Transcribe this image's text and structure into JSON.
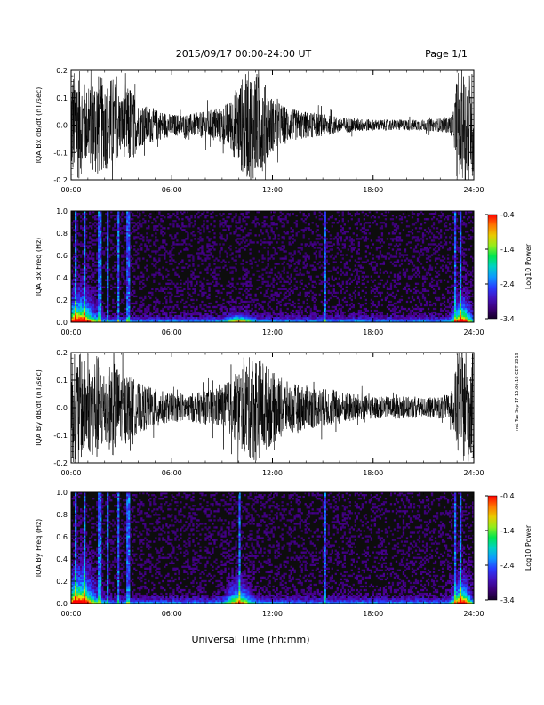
{
  "header": {
    "date_range": "2015/09/17   00:00-24:00 UT",
    "page": "Page 1/1"
  },
  "side_note": "net Tue Sep 17 15:06:18 CDT 2019",
  "xlabel": "Universal Time (hh:mm)",
  "colors": {
    "trace": "#000000",
    "spec_bg": "#0d0d0d"
  },
  "chart_data": [
    {
      "type": "line",
      "ylabel": "IQA Bx dB/dt (nT/sec)",
      "ylim": [
        -0.2,
        0.2
      ],
      "yticks": [
        "0.2",
        "0.1",
        "0.0",
        "-0.1",
        "-0.2"
      ],
      "xlim": [
        0,
        24
      ],
      "xticks": [
        "00:00",
        "06:00",
        "12:00",
        "18:00",
        "24:00"
      ],
      "envelope": {
        "hours": [
          0,
          0.5,
          1,
          1.5,
          2,
          2.5,
          3,
          3.5,
          4,
          4.5,
          5,
          5.5,
          6,
          7,
          8,
          8.5,
          9,
          9.5,
          10,
          10.5,
          11,
          11.5,
          12,
          13,
          14,
          15,
          16,
          17,
          18,
          19,
          20,
          21,
          22,
          22.5,
          22.8,
          23,
          23.3,
          23.6,
          24
        ],
        "amplitude": [
          0.2,
          0.2,
          0.13,
          0.2,
          0.16,
          0.18,
          0.1,
          0.15,
          0.08,
          0.07,
          0.06,
          0.05,
          0.04,
          0.04,
          0.05,
          0.06,
          0.07,
          0.09,
          0.16,
          0.2,
          0.2,
          0.16,
          0.1,
          0.06,
          0.05,
          0.04,
          0.03,
          0.025,
          0.02,
          0.02,
          0.02,
          0.02,
          0.025,
          0.03,
          0.05,
          0.2,
          0.2,
          0.2,
          0.2
        ]
      }
    },
    {
      "type": "heatmap",
      "ylabel": "IQA Bx Freq (Hz)",
      "ylim": [
        0,
        1.0
      ],
      "yticks": [
        "1.0",
        "0.8",
        "0.6",
        "0.4",
        "0.2",
        "0.0"
      ],
      "xlim": [
        0,
        24
      ],
      "xticks": [
        "00:00",
        "06:00",
        "12:00",
        "18:00",
        "24:00"
      ],
      "colorbar": {
        "label": "Log10 Power",
        "ticks": [
          "-0.4",
          "-1.4",
          "-2.4",
          "-3.4"
        ],
        "range": [
          -3.4,
          -0.4
        ]
      },
      "spikes_hours": [
        0.3,
        0.8,
        1.7,
        2.2,
        2.8,
        3.4,
        15.1,
        22.9,
        23.2
      ],
      "bursts": [
        {
          "hour": 0.5,
          "width": 0.9,
          "freq": 0.35,
          "level": 0.9
        },
        {
          "hour": 10.0,
          "width": 0.7,
          "freq": 0.12,
          "level": 0.55
        },
        {
          "hour": 23.3,
          "width": 0.5,
          "freq": 0.3,
          "level": 0.85
        }
      ]
    },
    {
      "type": "line",
      "ylabel": "IQA By dB/dt (nT/sec)",
      "ylim": [
        -0.2,
        0.2
      ],
      "yticks": [
        "0.2",
        "0.1",
        "0.0",
        "-0.1",
        "-0.2"
      ],
      "xlim": [
        0,
        24
      ],
      "xticks": [
        "00:00",
        "06:00",
        "12:00",
        "18:00",
        "24:00"
      ],
      "envelope": {
        "hours": [
          0,
          0.5,
          1,
          1.5,
          2,
          2.5,
          3,
          3.5,
          4,
          4.5,
          5,
          5.5,
          6,
          7,
          8,
          8.5,
          9,
          9.5,
          10,
          10.5,
          11,
          11.5,
          12,
          13,
          14,
          15,
          16,
          17,
          18,
          19,
          20,
          21,
          22,
          22.5,
          22.8,
          23,
          23.3,
          23.6,
          24
        ],
        "amplitude": [
          0.2,
          0.2,
          0.16,
          0.2,
          0.14,
          0.18,
          0.12,
          0.12,
          0.09,
          0.08,
          0.07,
          0.06,
          0.05,
          0.05,
          0.06,
          0.07,
          0.08,
          0.1,
          0.14,
          0.18,
          0.2,
          0.17,
          0.13,
          0.09,
          0.08,
          0.07,
          0.06,
          0.05,
          0.04,
          0.04,
          0.04,
          0.035,
          0.04,
          0.05,
          0.07,
          0.2,
          0.2,
          0.2,
          0.2
        ]
      }
    },
    {
      "type": "heatmap",
      "ylabel": "IQA By Freq (Hz)",
      "ylim": [
        0,
        1.0
      ],
      "yticks": [
        "1.0",
        "0.8",
        "0.6",
        "0.4",
        "0.2",
        "0.0"
      ],
      "xlim": [
        0,
        24
      ],
      "xticks": [
        "00:00",
        "06:00",
        "12:00",
        "18:00",
        "24:00"
      ],
      "colorbar": {
        "label": "Log10 Power",
        "ticks": [
          "-0.4",
          "-1.4",
          "-2.4",
          "-3.4"
        ],
        "range": [
          -3.4,
          -0.4
        ]
      },
      "spikes_hours": [
        0.3,
        0.8,
        1.7,
        2.2,
        2.8,
        3.4,
        10.0,
        15.1,
        22.9,
        23.2
      ],
      "bursts": [
        {
          "hour": 0.5,
          "width": 0.9,
          "freq": 0.4,
          "level": 0.9
        },
        {
          "hour": 10.0,
          "width": 0.7,
          "freq": 0.3,
          "level": 0.6
        },
        {
          "hour": 23.3,
          "width": 0.5,
          "freq": 0.3,
          "level": 0.85
        }
      ]
    }
  ]
}
